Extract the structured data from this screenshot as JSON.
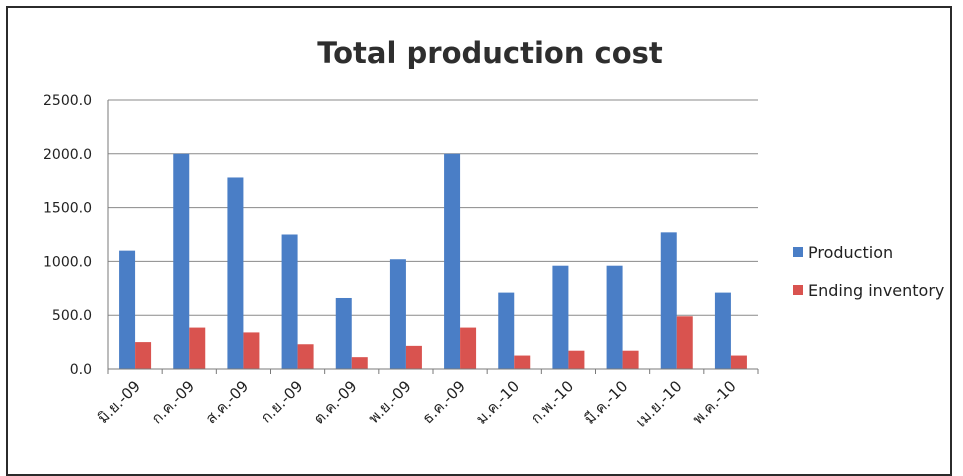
{
  "chart_data": {
    "type": "bar",
    "title": "Total production cost",
    "xlabel": "",
    "ylabel": "",
    "ylim": [
      0,
      2500
    ],
    "yticks": [
      "0.0",
      "500.0",
      "1000.0",
      "1500.0",
      "2000.0",
      "2500.0"
    ],
    "categories": [
      "มิ.ย.-09",
      "ก.ค.-09",
      "ส.ค.-09",
      "ก.ย.-09",
      "ต.ค.-09",
      "พ.ย.-09",
      "ธ.ค.-09",
      "ม.ค.-10",
      "ก.พ.-10",
      "มี.ค.-10",
      "เม.ย.-10",
      "พ.ค.-10"
    ],
    "series": [
      {
        "name": "Production",
        "color": "#4a7ec6",
        "values": [
          1100,
          2000,
          1780,
          1250,
          660,
          1020,
          2000,
          710,
          960,
          960,
          1270,
          710
        ]
      },
      {
        "name": "Ending inventory",
        "color": "#d9534f",
        "values": [
          250,
          385,
          340,
          230,
          110,
          215,
          385,
          125,
          170,
          170,
          490,
          125
        ]
      }
    ],
    "grid": true,
    "legend": "right"
  }
}
